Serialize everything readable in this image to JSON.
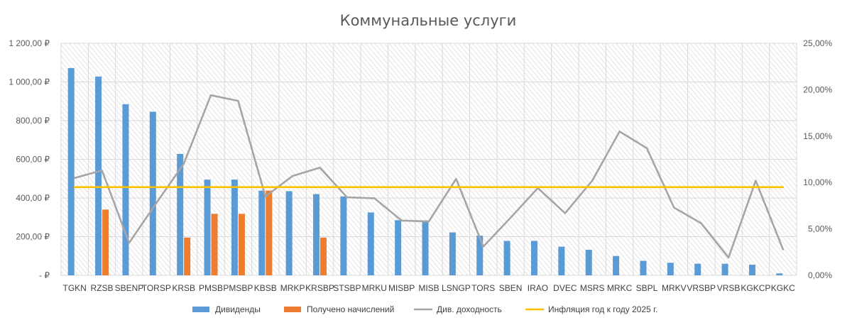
{
  "chart_data": {
    "type": "bar",
    "title": "Коммунальные услуги",
    "categories": [
      "TGKN",
      "RZSB",
      "SBENP",
      "TORSP",
      "KRSB",
      "PMSB",
      "PMSBP",
      "KBSB",
      "MRKP",
      "KRSBP",
      "STSBP",
      "MRKU",
      "MISBP",
      "MISB",
      "LSNGP",
      "TORS",
      "SBEN",
      "IRAO",
      "DVEC",
      "MSRS",
      "MRKC",
      "SBPL",
      "MRKV",
      "VRSBP",
      "VRSB",
      "KGKCP",
      "KGKC"
    ],
    "ylim": [
      0,
      1200
    ],
    "y_ticks": [
      "-  ₽",
      "200,00 ₽",
      "400,00 ₽",
      "600,00 ₽",
      "800,00 ₽",
      "1 000,00 ₽",
      "1 200,00 ₽"
    ],
    "y2lim": [
      0,
      25
    ],
    "y2_ticks": [
      "0,00%",
      "5,00%",
      "10,00%",
      "15,00%",
      "20,00%",
      "25,00%"
    ],
    "grid": true,
    "legend_position": "bottom",
    "series": [
      {
        "name": "Дивиденды",
        "type": "bar",
        "axis": "left",
        "color": "#5b9bd5",
        "values": [
          1072,
          1028,
          885,
          846,
          628,
          495,
          495,
          438,
          435,
          420,
          408,
          325,
          285,
          283,
          222,
          205,
          178,
          178,
          148,
          132,
          100,
          75,
          65,
          60,
          60,
          55,
          10
        ]
      },
      {
        "name": "Получено начислений",
        "type": "bar",
        "axis": "left",
        "color": "#ed7d31",
        "values": [
          0,
          340,
          0,
          0,
          195,
          318,
          318,
          438,
          0,
          195,
          0,
          0,
          0,
          0,
          0,
          0,
          0,
          0,
          0,
          0,
          0,
          0,
          0,
          0,
          0,
          0,
          0
        ]
      },
      {
        "name": "Див. доходность",
        "type": "line",
        "axis": "right",
        "color": "#a5a5a5",
        "values": [
          10.5,
          11.3,
          3.5,
          7.8,
          12.0,
          19.4,
          18.8,
          8.5,
          10.7,
          11.6,
          8.4,
          8.3,
          5.9,
          5.8,
          10.4,
          3.1,
          6.2,
          9.4,
          6.7,
          10.2,
          15.5,
          13.7,
          7.3,
          5.6,
          1.9,
          10.2,
          2.8
        ]
      },
      {
        "name": "Инфляция год к году 2025 г.",
        "type": "line",
        "axis": "right",
        "color": "#ffc000",
        "values": [
          9.5,
          9.5,
          9.5,
          9.5,
          9.5,
          9.5,
          9.5,
          9.5,
          9.5,
          9.5,
          9.5,
          9.5,
          9.5,
          9.5,
          9.5,
          9.5,
          9.5,
          9.5,
          9.5,
          9.5,
          9.5,
          9.5,
          9.5,
          9.5,
          9.5,
          9.5,
          9.5
        ]
      }
    ]
  }
}
